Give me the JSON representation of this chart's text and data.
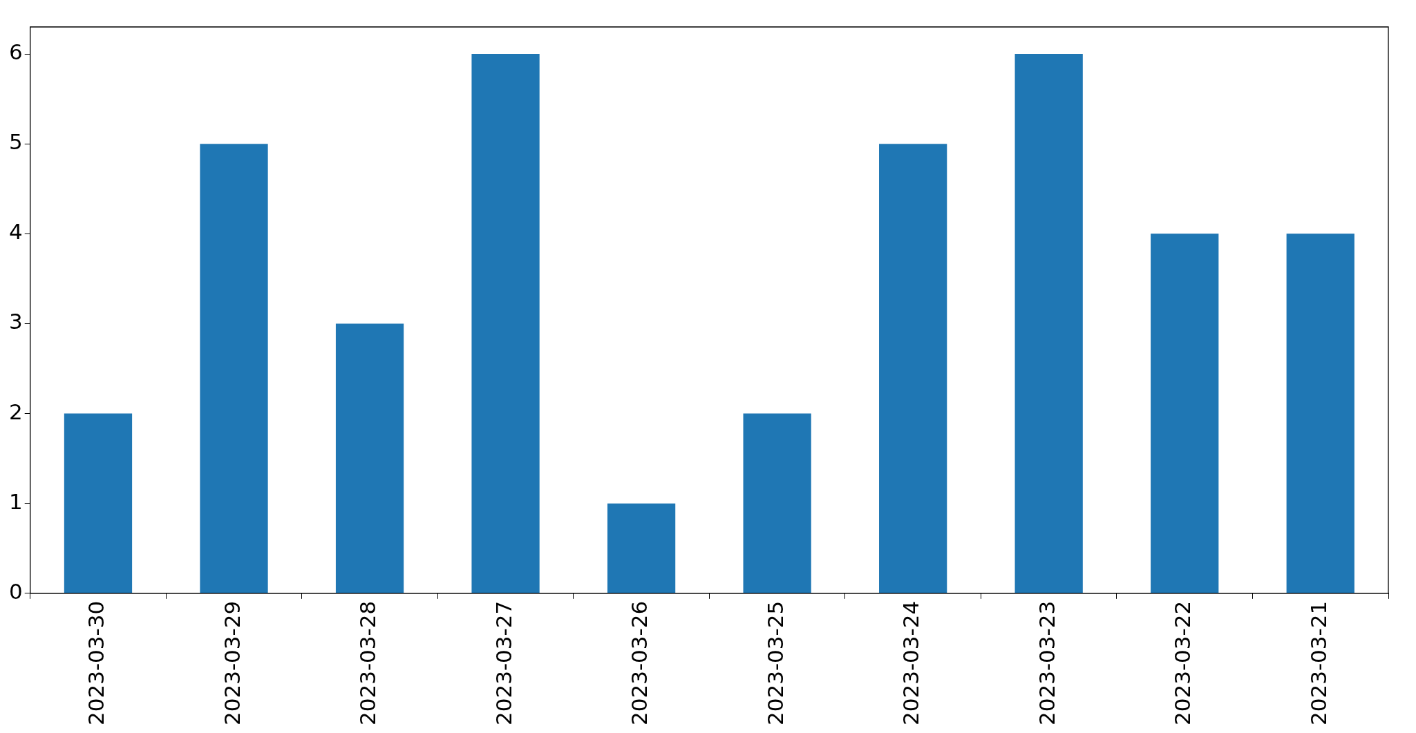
{
  "chart_data": {
    "type": "bar",
    "categories": [
      "2023-03-30",
      "2023-03-29",
      "2023-03-28",
      "2023-03-27",
      "2023-03-26",
      "2023-03-25",
      "2023-03-24",
      "2023-03-23",
      "2023-03-22",
      "2023-03-21"
    ],
    "values": [
      2,
      5,
      3,
      6,
      1,
      2,
      5,
      6,
      4,
      4
    ],
    "color": "#1f77b4",
    "ylim": [
      0,
      6.3
    ],
    "yticks": [
      0,
      1,
      2,
      3,
      4,
      5,
      6
    ],
    "grid": false,
    "legend": false
  }
}
